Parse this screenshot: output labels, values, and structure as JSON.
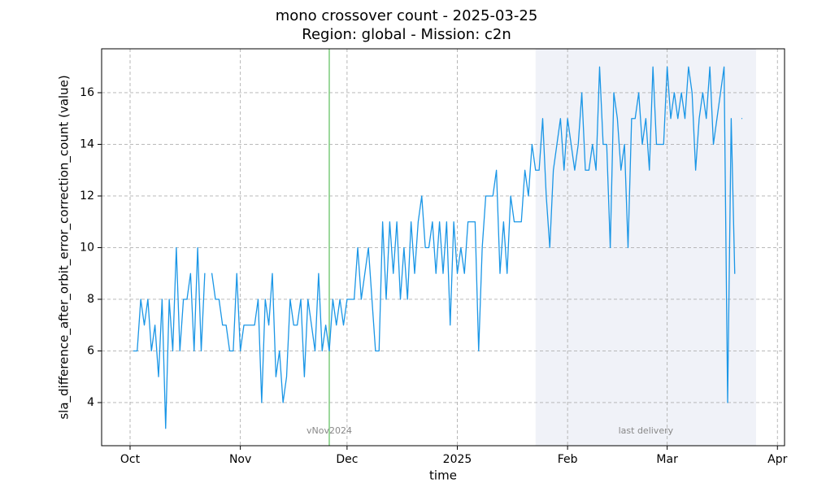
{
  "chart_data": {
    "type": "line",
    "title": "mono crossover count - 2025-03-25",
    "subtitle": "Region: global - Mission: c2n",
    "xlabel": "time",
    "ylabel": "sla_difference_after_orbit_error_correction_count (value)",
    "x": [
      "2024-10-02",
      "2024-10-03",
      "2024-10-04",
      "2024-10-05",
      "2024-10-06",
      "2024-10-07",
      "2024-10-08",
      "2024-10-09",
      "2024-10-10",
      "2024-10-11",
      "2024-10-12",
      "2024-10-13",
      "2024-10-14",
      "2024-10-15",
      "2024-10-16",
      "2024-10-17",
      "2024-10-18",
      "2024-10-19",
      "2024-10-20",
      "2024-10-21",
      "2024-10-22",
      "2024-10-23",
      "2024-10-24",
      "2024-10-25",
      "2024-10-26",
      "2024-10-27",
      "2024-10-28",
      "2024-10-29",
      "2024-10-30",
      "2024-10-31",
      "2024-11-01",
      "2024-11-02",
      "2024-11-03",
      "2024-11-04",
      "2024-11-05",
      "2024-11-06",
      "2024-11-07",
      "2024-11-08",
      "2024-11-09",
      "2024-11-10",
      "2024-11-11",
      "2024-11-12",
      "2024-11-13",
      "2024-11-14",
      "2024-11-15",
      "2024-11-16",
      "2024-11-17",
      "2024-11-18",
      "2024-11-19",
      "2024-11-20",
      "2024-11-21",
      "2024-11-22",
      "2024-11-23",
      "2024-11-24",
      "2024-11-25",
      "2024-11-26",
      "2024-11-27",
      "2024-11-28",
      "2024-11-29",
      "2024-11-30",
      "2024-12-01",
      "2024-12-02",
      "2024-12-03",
      "2024-12-04",
      "2024-12-05",
      "2024-12-06",
      "2024-12-07",
      "2024-12-08",
      "2024-12-09",
      "2024-12-10",
      "2024-12-11",
      "2024-12-12",
      "2024-12-13",
      "2024-12-14",
      "2024-12-15",
      "2024-12-16",
      "2024-12-17",
      "2024-12-18",
      "2024-12-19",
      "2024-12-20",
      "2024-12-21",
      "2024-12-22",
      "2024-12-23",
      "2024-12-24",
      "2024-12-25",
      "2024-12-26",
      "2024-12-27",
      "2024-12-28",
      "2024-12-29",
      "2024-12-30",
      "2024-12-31",
      "2025-01-01",
      "2025-01-02",
      "2025-01-03",
      "2025-01-04",
      "2025-01-05",
      "2025-01-06",
      "2025-01-07",
      "2025-01-08",
      "2025-01-09",
      "2025-01-10",
      "2025-01-11",
      "2025-01-12",
      "2025-01-13",
      "2025-01-14",
      "2025-01-15",
      "2025-01-16",
      "2025-01-17",
      "2025-01-18",
      "2025-01-19",
      "2025-01-20",
      "2025-01-21",
      "2025-01-22",
      "2025-01-23",
      "2025-01-24",
      "2025-01-25",
      "2025-01-26",
      "2025-01-27",
      "2025-01-28",
      "2025-01-29",
      "2025-01-30",
      "2025-01-31",
      "2025-02-01",
      "2025-02-02",
      "2025-02-03",
      "2025-02-04",
      "2025-02-05",
      "2025-02-06",
      "2025-02-07",
      "2025-02-08",
      "2025-02-09",
      "2025-02-10",
      "2025-02-11",
      "2025-02-12",
      "2025-02-13",
      "2025-02-14",
      "2025-02-15",
      "2025-02-16",
      "2025-02-17",
      "2025-02-18",
      "2025-02-19",
      "2025-02-20",
      "2025-02-21",
      "2025-02-22",
      "2025-02-23",
      "2025-02-24",
      "2025-02-25",
      "2025-02-26",
      "2025-02-27",
      "2025-02-28",
      "2025-03-01",
      "2025-03-02",
      "2025-03-03",
      "2025-03-04",
      "2025-03-05",
      "2025-03-06",
      "2025-03-07",
      "2025-03-08",
      "2025-03-09",
      "2025-03-10",
      "2025-03-11",
      "2025-03-12",
      "2025-03-13",
      "2025-03-14",
      "2025-03-15",
      "2025-03-16",
      "2025-03-17",
      "2025-03-18",
      "2025-03-19",
      "2025-03-20",
      "2025-03-21",
      "2025-03-22"
    ],
    "series": [
      {
        "color": "#1a96e6",
        "values": [
          6,
          6,
          8,
          7,
          8,
          6,
          7,
          5,
          8,
          3,
          8,
          6,
          10,
          6,
          8,
          8,
          9,
          6,
          10,
          6,
          9,
          null,
          9,
          8,
          8,
          7,
          7,
          6,
          6,
          9,
          6,
          7,
          7,
          7,
          7,
          8,
          4,
          8,
          7,
          9,
          5,
          6,
          4,
          5,
          8,
          7,
          7,
          8,
          5,
          8,
          7,
          6,
          9,
          6,
          7,
          6,
          8,
          7,
          8,
          7,
          8,
          8,
          8,
          10,
          8,
          9,
          10,
          8,
          6,
          6,
          11,
          8,
          11,
          9,
          11,
          8,
          10,
          8,
          11,
          9,
          11,
          12,
          10,
          10,
          11,
          9,
          11,
          9,
          11,
          7,
          11,
          9,
          10,
          9,
          11,
          11,
          11,
          6,
          10,
          12,
          12,
          12,
          13,
          9,
          11,
          9,
          12,
          11,
          11,
          11,
          13,
          12,
          14,
          13,
          13,
          15,
          12,
          10,
          13,
          14,
          15,
          13,
          15,
          14,
          13,
          14,
          16,
          13,
          13,
          14,
          13,
          17,
          14,
          14,
          10,
          16,
          15,
          13,
          14,
          10,
          15,
          15,
          16,
          14,
          15,
          13,
          17,
          14,
          14,
          14,
          17,
          15,
          16,
          15,
          16,
          15,
          17,
          16,
          13,
          15,
          16,
          15,
          17,
          14,
          15,
          16,
          17,
          4,
          15,
          9,
          null,
          15
        ]
      }
    ],
    "xlim": [
      "2024-09-23",
      "2025-04-03"
    ],
    "xticks": [
      {
        "value": "2024-10-01",
        "label": "Oct"
      },
      {
        "value": "2024-11-01",
        "label": "Nov"
      },
      {
        "value": "2024-12-01",
        "label": "Dec"
      },
      {
        "value": "2025-01-01",
        "label": "2025"
      },
      {
        "value": "2025-02-01",
        "label": "Feb"
      },
      {
        "value": "2025-03-01",
        "label": "Mar"
      },
      {
        "value": "2025-04-01",
        "label": "Apr"
      }
    ],
    "ylim": [
      2.33,
      17.7
    ],
    "yticks": [
      4,
      6,
      8,
      10,
      12,
      14,
      16
    ],
    "grid": true,
    "vlines": [
      {
        "x": "2024-11-26",
        "label": "vNov2024",
        "color": "#7ccc7c"
      }
    ],
    "spans": [
      {
        "start": "2025-01-23",
        "end": "2025-03-26",
        "label": "last delivery",
        "color": "#f0f2f8"
      }
    ]
  }
}
